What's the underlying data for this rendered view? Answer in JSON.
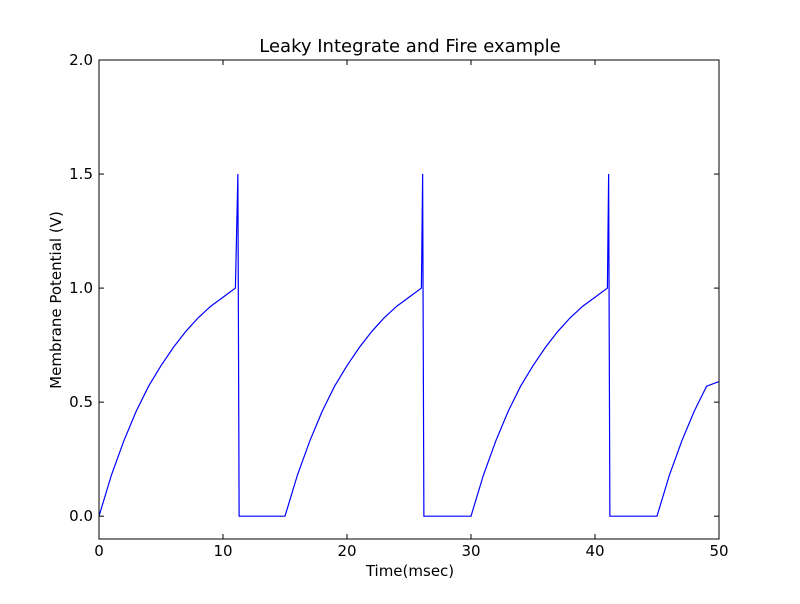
{
  "chart_data": {
    "type": "line",
    "title": "Leaky Integrate and Fire example",
    "xlabel": "Time(msec)",
    "ylabel": "Membrane Potential (V)",
    "xlim": [
      0,
      50
    ],
    "ylim": [
      -0.1,
      2.0
    ],
    "x_ticks": [
      0,
      10,
      20,
      30,
      40,
      50
    ],
    "x_tick_labels": [
      "0",
      "10",
      "20",
      "30",
      "40",
      "50"
    ],
    "y_ticks": [
      0.0,
      0.5,
      1.0,
      1.5,
      2.0
    ],
    "y_tick_labels": [
      "0.0",
      "0.5",
      "1.0",
      "1.5",
      "2.0"
    ],
    "grid": false,
    "legend": false,
    "series": [
      {
        "color": "#0000ff",
        "x": [
          0,
          1,
          2,
          3,
          4,
          5,
          6,
          7,
          8,
          9,
          10,
          11,
          11.2,
          11.3,
          15,
          16,
          17,
          18,
          19,
          20,
          21,
          22,
          23,
          24,
          25,
          26,
          26.1,
          26.2,
          30,
          31,
          32,
          33,
          34,
          35,
          36,
          37,
          38,
          39,
          40,
          41,
          41.1,
          41.2,
          45,
          46,
          47,
          48,
          49,
          50
        ],
        "y": [
          0.0,
          0.18,
          0.33,
          0.46,
          0.57,
          0.66,
          0.74,
          0.81,
          0.87,
          0.92,
          0.96,
          1.0,
          1.5,
          0.0,
          0.0,
          0.18,
          0.33,
          0.46,
          0.57,
          0.66,
          0.74,
          0.81,
          0.87,
          0.92,
          0.96,
          1.0,
          1.5,
          0.0,
          0.0,
          0.18,
          0.33,
          0.46,
          0.57,
          0.66,
          0.74,
          0.81,
          0.87,
          0.92,
          0.96,
          1.0,
          1.5,
          0.0,
          0.0,
          0.18,
          0.33,
          0.46,
          0.57,
          0.59
        ]
      }
    ]
  }
}
